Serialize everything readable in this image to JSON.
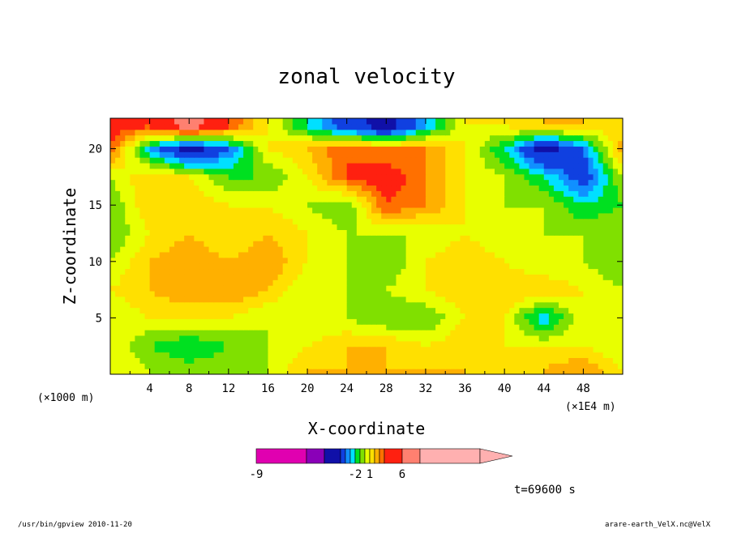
{
  "chart_data": {
    "type": "heatmap",
    "title": "zonal velocity",
    "xlabel": "X-coordinate",
    "ylabel": "Z-coordinate",
    "x_unit": "(×1E4 m)",
    "z_unit": "(×1000 m)",
    "xlim": [
      0,
      52
    ],
    "ylim": [
      0,
      22.7
    ],
    "x_ticks": [
      4,
      8,
      12,
      16,
      20,
      24,
      28,
      32,
      36,
      40,
      44,
      48
    ],
    "y_ticks": [
      5,
      10,
      15,
      20
    ],
    "grid": false,
    "time_label": "t=69600 s",
    "colorbar": {
      "tick_labels": [
        "-9",
        "-2",
        "1",
        "6"
      ],
      "tick_positions": [
        -9,
        -2,
        1,
        6
      ],
      "boundaries": [
        -15,
        -10,
        -8,
        -6,
        -4,
        -3,
        -2,
        -1,
        0,
        1,
        2,
        3,
        4,
        6,
        8,
        20
      ],
      "colors": [
        "#e000b0",
        "#8a00b8",
        "#1010a8",
        "#1040e0",
        "#1090ff",
        "#00e0ff",
        "#00e020",
        "#80e000",
        "#e8ff00",
        "#ffe000",
        "#ffb000",
        "#ff7000",
        "#ff2010",
        "#ff8070",
        "#ffb0b0"
      ]
    },
    "zonal_velocity_grid": {
      "x": [
        0,
        4,
        8,
        12,
        16,
        20,
        24,
        28,
        32,
        36,
        40,
        44,
        48,
        52
      ],
      "z": [
        0.5,
        2.5,
        5,
        7.5,
        10,
        12.5,
        15,
        17.5,
        20,
        22
      ],
      "values": [
        [
          1,
          0,
          -0.5,
          -0.5,
          0,
          2,
          2,
          2,
          2,
          2,
          1,
          2,
          3,
          1
        ],
        [
          1,
          -1,
          -2,
          -1,
          0,
          1,
          2,
          2,
          1,
          2,
          1,
          1,
          1,
          0
        ],
        [
          0,
          1,
          1,
          1,
          0,
          0,
          0,
          -1,
          -1,
          1,
          1,
          -3,
          1,
          0
        ],
        [
          1,
          2,
          3,
          3,
          2,
          0,
          0,
          0,
          1,
          2,
          2,
          2,
          1,
          0
        ],
        [
          0,
          2,
          3,
          2,
          3,
          1,
          0,
          -1,
          1,
          2,
          1,
          0,
          0,
          -1
        ],
        [
          -1,
          1,
          2,
          1,
          2,
          1,
          0,
          0,
          0,
          1,
          0,
          0,
          0,
          0
        ],
        [
          -1,
          2,
          2,
          1,
          1,
          0,
          -1,
          4,
          3,
          1,
          0,
          0,
          -2,
          -1
        ],
        [
          0,
          2,
          1,
          -1,
          -1,
          1,
          4,
          5,
          3,
          1,
          0,
          -2,
          -5,
          0
        ],
        [
          4,
          -3,
          -7,
          -4,
          1,
          2,
          4,
          3,
          3,
          1,
          -2,
          -7,
          -4,
          3
        ],
        [
          5,
          4,
          7,
          4,
          1,
          -2,
          -5,
          -7,
          -3,
          1,
          1,
          2,
          2,
          1
        ]
      ]
    }
  },
  "footer": {
    "left": "/usr/bin/gpview   2010-11-20",
    "right": "arare-earth_VelX.nc@VelX"
  }
}
